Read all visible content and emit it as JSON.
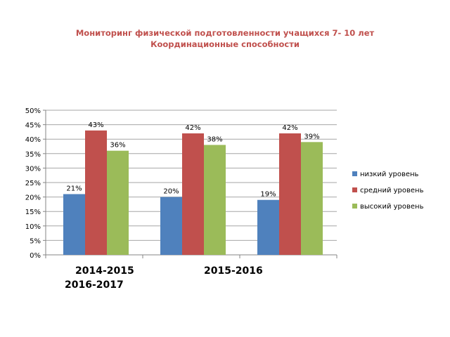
{
  "chart_data": {
    "type": "bar",
    "title": [
      "Мониторинг физической подготовленности учащихся 7- 10 лет",
      "Координационные способности"
    ],
    "categories": [
      "2014-2015",
      "2015-2016",
      "2016-2017"
    ],
    "series": [
      {
        "name": "низкий уровень",
        "values": [
          21,
          20,
          19
        ],
        "labels": [
          "21%",
          "20%",
          "19%"
        ],
        "color": "#4f81bd"
      },
      {
        "name": "средний уровень",
        "values": [
          43,
          42,
          42
        ],
        "labels": [
          "43%",
          "42%",
          "42%"
        ],
        "color": "#c0504d"
      },
      {
        "name": "высокий уровень",
        "values": [
          36,
          38,
          39
        ],
        "labels": [
          "36%",
          "38%",
          "39%"
        ],
        "color": "#9bbb59"
      }
    ],
    "y_ticks": [
      "0%",
      "5%",
      "10%",
      "15%",
      "20%",
      "25%",
      "30%",
      "35%",
      "40%",
      "45%",
      "50%"
    ],
    "ylim": [
      0,
      50
    ],
    "grid": true,
    "legend": "right"
  }
}
